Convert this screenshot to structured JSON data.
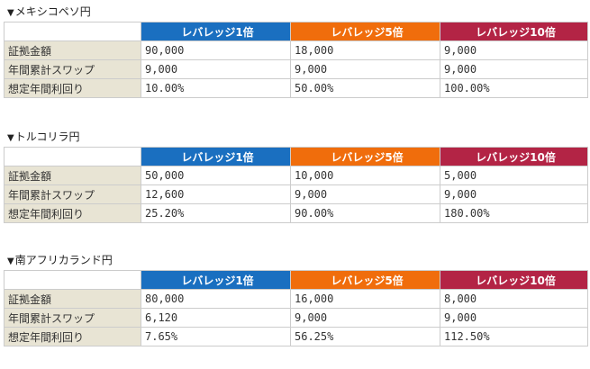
{
  "columns": [
    "レバレッジ1倍",
    "レバレッジ5倍",
    "レバレッジ10倍"
  ],
  "row_labels": [
    "証拠金額",
    "年間累計スワップ",
    "想定年間利回り"
  ],
  "colors": {
    "leverage1": "#1a6fc0",
    "leverage5": "#f06d0c",
    "leverage10": "#b32445",
    "label_bg": "#e8e4d4"
  },
  "sections": [
    {
      "marker": "▼",
      "title": "メキシコペソ円",
      "rows": [
        [
          "90,000",
          "18,000",
          "9,000"
        ],
        [
          "9,000",
          "9,000",
          "9,000"
        ],
        [
          "10.00%",
          "50.00%",
          "100.00%"
        ]
      ]
    },
    {
      "marker": "▼",
      "title": "トルコリラ円",
      "rows": [
        [
          "50,000",
          "10,000",
          "5,000"
        ],
        [
          "12,600",
          "9,000",
          "9,000"
        ],
        [
          "25.20%",
          "90.00%",
          "180.00%"
        ]
      ]
    },
    {
      "marker": "▼",
      "title": "南アフリカランド円",
      "rows": [
        [
          "80,000",
          "16,000",
          "8,000"
        ],
        [
          "6,120",
          "9,000",
          "9,000"
        ],
        [
          "7.65%",
          "56.25%",
          "112.50%"
        ]
      ]
    }
  ]
}
